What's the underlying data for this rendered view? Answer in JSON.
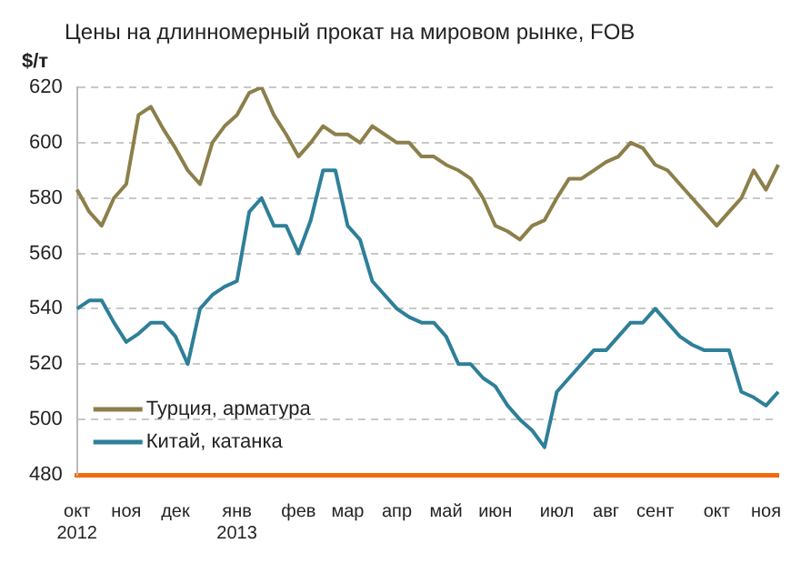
{
  "chart_data": {
    "type": "line",
    "title": "Цены на длинномерный прокат на мировом рынке, FOB",
    "ylabel": "$/т",
    "categories": [
      "окт\n2012",
      null,
      null,
      null,
      "ноя",
      null,
      null,
      null,
      "дек",
      null,
      null,
      null,
      null,
      "янв\n2013",
      null,
      null,
      null,
      null,
      "фев",
      null,
      null,
      null,
      "мар",
      null,
      null,
      null,
      "апр",
      null,
      null,
      null,
      "май",
      null,
      null,
      null,
      "июн",
      null,
      null,
      null,
      null,
      "июл",
      null,
      null,
      null,
      "авг",
      null,
      null,
      null,
      "сент",
      null,
      null,
      null,
      null,
      "окт",
      null,
      null,
      null,
      "ноя",
      null
    ],
    "series": [
      {
        "name": "Турция, арматура",
        "color": "#8c7f4a",
        "values": [
          583,
          575,
          570,
          580,
          585,
          610,
          613,
          605,
          598,
          590,
          585,
          600,
          606,
          610,
          618,
          620,
          610,
          603,
          595,
          600,
          606,
          603,
          603,
          600,
          606,
          603,
          600,
          600,
          595,
          595,
          592,
          590,
          587,
          580,
          570,
          568,
          565,
          570,
          572,
          580,
          587,
          587,
          590,
          593,
          595,
          600,
          598,
          592,
          590,
          585,
          580,
          575,
          570,
          575,
          580,
          590,
          583,
          592
        ]
      },
      {
        "name": "Китай, катанка",
        "color": "#2e7f99",
        "values": [
          540,
          543,
          543,
          535,
          528,
          531,
          535,
          535,
          530,
          520,
          540,
          545,
          548,
          550,
          575,
          580,
          570,
          570,
          560,
          572,
          590,
          590,
          570,
          565,
          550,
          545,
          540,
          537,
          535,
          535,
          530,
          520,
          520,
          515,
          512,
          505,
          500,
          496,
          490,
          510,
          515,
          520,
          525,
          525,
          530,
          535,
          535,
          540,
          535,
          530,
          527,
          525,
          525,
          525,
          510,
          508,
          505,
          510
        ]
      }
    ],
    "ylim": [
      480,
      620
    ],
    "yticks": [
      480,
      500,
      520,
      540,
      560,
      580,
      600,
      620
    ],
    "grid": "y",
    "legend": "bottom left",
    "line_style": "solid",
    "marker": "none"
  }
}
